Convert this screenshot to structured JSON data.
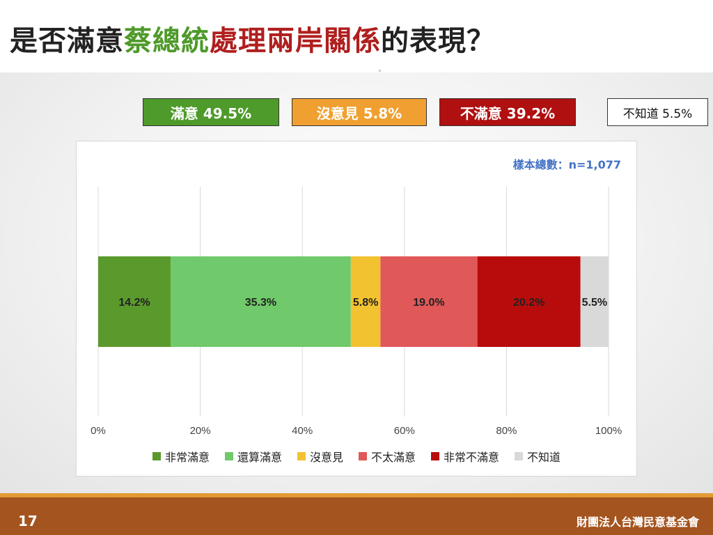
{
  "title": {
    "part1": "是否滿意",
    "part2": "蔡總統",
    "part3": "處理兩岸關係",
    "part4": "的表現？"
  },
  "summary": [
    {
      "label": "滿意 49.5%",
      "color": "#4e9a2a"
    },
    {
      "label": "沒意見 5.8%",
      "color": "#f0a030"
    },
    {
      "label": "不滿意 39.2%",
      "color": "#b01010"
    },
    {
      "label": "不知道 5.5%",
      "color": "#ffffff"
    }
  ],
  "sample_size": "樣本總數：n=1,077",
  "chart_data": {
    "type": "bar",
    "orientation": "horizontal-stacked",
    "series": [
      {
        "name": "非常滿意",
        "value": 14.2,
        "color": "#5a9a2c"
      },
      {
        "name": "還算滿意",
        "value": 35.3,
        "color": "#70c96a"
      },
      {
        "name": "沒意見",
        "value": 5.8,
        "color": "#f2c230"
      },
      {
        "name": "不太滿意",
        "value": 19.0,
        "color": "#e05858"
      },
      {
        "name": "非常不滿意",
        "value": 20.2,
        "color": "#b80c0c"
      },
      {
        "name": "不知道",
        "value": 5.5,
        "color": "#d9d9d9"
      }
    ],
    "data_labels": [
      "14.2%",
      "35.3%",
      "5.8%",
      "19.0%",
      "20.2%",
      "5.5%"
    ],
    "xlim": [
      0,
      100
    ],
    "x_ticks": [
      "0%",
      "20%",
      "40%",
      "60%",
      "80%",
      "100%"
    ],
    "grid": true,
    "legend_position": "bottom"
  },
  "footer": {
    "page": "17",
    "org": "財團法人台灣民意基金會"
  }
}
